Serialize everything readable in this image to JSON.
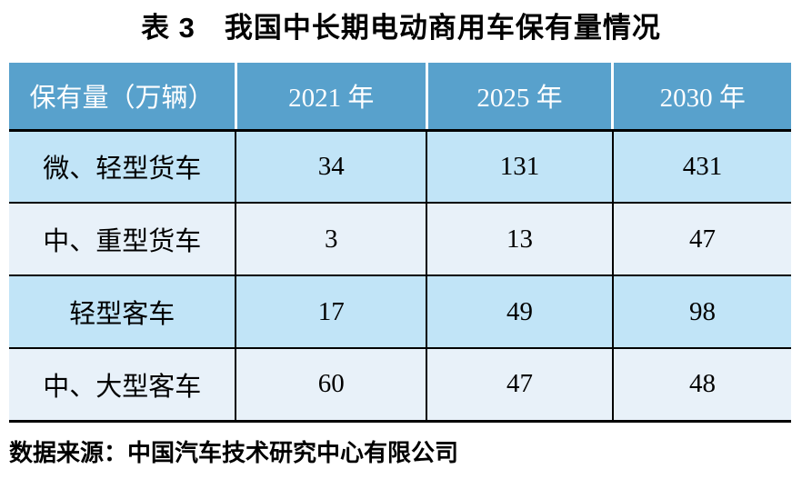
{
  "title": "表 3　我国中长期电动商用车保有量情况",
  "table": {
    "header": [
      "保有量（万辆）",
      "2021 年",
      "2025 年",
      "2030 年"
    ],
    "rows": [
      [
        "微、轻型货车",
        "34",
        "131",
        "431"
      ],
      [
        "中、重型货车",
        "3",
        "13",
        "47"
      ],
      [
        "轻型客车",
        "17",
        "49",
        "98"
      ],
      [
        "中、大型客车",
        "60",
        "47",
        "48"
      ]
    ]
  },
  "source": "数据来源：中国汽车技术研究中心有限公司",
  "colors": {
    "header-bg": "#58A1CC",
    "header-text": "#FFFFFF",
    "row-odd-bg": "#C1E4F7",
    "row-even-bg": "#E8F1F9",
    "grid-line": "#000000",
    "text": "#000000",
    "page-bg": "#FFFFFF"
  }
}
